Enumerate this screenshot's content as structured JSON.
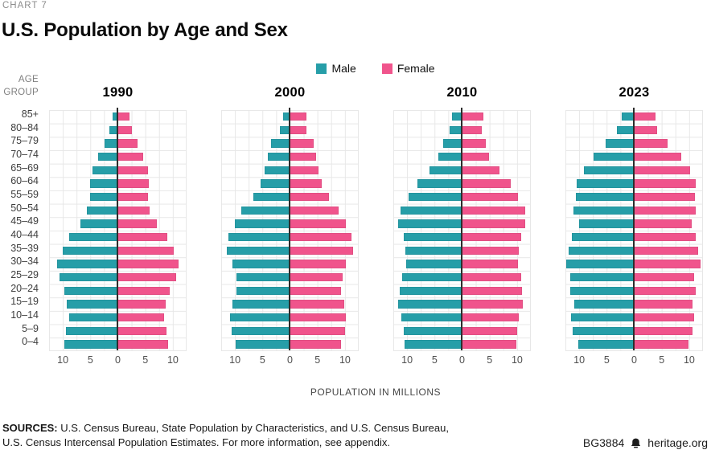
{
  "page": {
    "kicker": "CHART 7",
    "title": "U.S. Population by Age and Sex"
  },
  "legend": {
    "items": [
      {
        "label": "Male",
        "color": "#269EA8"
      },
      {
        "label": "Female",
        "color": "#F0548C"
      }
    ]
  },
  "age_axis": {
    "header": "AGE\nGROUP"
  },
  "chart_data": {
    "type": "bar",
    "subtype": "population-pyramid",
    "unit": "millions",
    "xlabel": "POPULATION IN MILLIONS",
    "x_tick_labels": [
      "10",
      "5",
      "0",
      "5",
      "10"
    ],
    "x_tick_values": [
      -10,
      -5,
      0,
      5,
      10
    ],
    "xlim": [
      -12.5,
      12.5
    ],
    "grid": true,
    "male_color": "#269EA8",
    "female_color": "#F0548C",
    "age_groups_top_to_bottom": [
      "85+",
      "80–84",
      "75–79",
      "70–74",
      "65–69",
      "60–64",
      "55–59",
      "50–54",
      "45–49",
      "40–44",
      "35–39",
      "30–34",
      "25–29",
      "20–24",
      "15–19",
      "10–14",
      "5–9",
      "0–4"
    ],
    "charts": [
      {
        "year": "1990",
        "male": [
          0.9,
          1.4,
          2.4,
          3.5,
          4.5,
          5.0,
          5.0,
          5.6,
          6.8,
          8.8,
          10.0,
          10.9,
          10.6,
          9.6,
          9.2,
          8.8,
          9.3,
          9.6
        ],
        "female": [
          2.2,
          2.6,
          3.7,
          4.7,
          5.6,
          5.7,
          5.5,
          5.9,
          7.2,
          9.1,
          10.2,
          11.1,
          10.6,
          9.5,
          8.8,
          8.5,
          8.9,
          9.2
        ]
      },
      {
        "year": "2000",
        "male": [
          1.2,
          1.8,
          3.3,
          4.0,
          4.5,
          5.2,
          6.6,
          8.8,
          9.9,
          11.1,
          11.4,
          10.4,
          9.7,
          9.7,
          10.4,
          10.8,
          10.5,
          9.8
        ],
        "female": [
          3.0,
          3.1,
          4.4,
          4.8,
          5.2,
          5.8,
          7.1,
          8.9,
          10.2,
          11.3,
          11.5,
          10.3,
          9.6,
          9.4,
          9.9,
          10.2,
          10.1,
          9.4
        ]
      },
      {
        "year": "2010",
        "male": [
          1.8,
          2.2,
          3.4,
          4.3,
          5.9,
          8.1,
          9.6,
          11.1,
          11.5,
          10.6,
          10.2,
          10.1,
          10.8,
          11.2,
          11.5,
          10.9,
          10.5,
          10.4
        ],
        "female": [
          3.9,
          3.6,
          4.4,
          5.0,
          6.9,
          8.9,
          10.3,
          11.6,
          11.6,
          10.8,
          10.4,
          10.3,
          10.8,
          10.9,
          11.1,
          10.4,
          10.1,
          10.0
        ]
      },
      {
        "year": "2023",
        "male": [
          2.2,
          3.1,
          5.1,
          7.3,
          9.1,
          10.4,
          10.5,
          11.0,
          9.9,
          11.2,
          11.8,
          12.3,
          11.5,
          11.6,
          10.8,
          11.4,
          11.1,
          10.1
        ],
        "female": [
          3.9,
          4.3,
          6.2,
          8.6,
          10.2,
          11.2,
          11.1,
          11.2,
          10.5,
          11.3,
          11.7,
          12.2,
          11.0,
          11.3,
          10.6,
          11.0,
          10.6,
          9.9
        ]
      }
    ]
  },
  "footer": {
    "sources_label": "SOURCES:",
    "sources_line1": "U.S. Census Bureau, State Population by Characteristics, and U.S. Census Bureau,",
    "sources_line2": "U.S. Census Intercensal Population Estimates. For more information, see appendix.",
    "report_id": "BG3884",
    "org": "heritage.org"
  }
}
